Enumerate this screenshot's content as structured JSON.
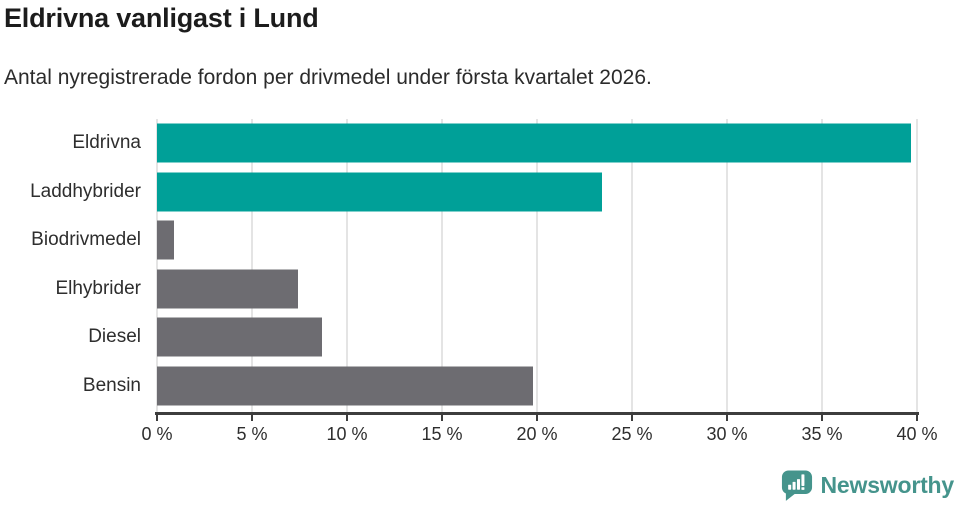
{
  "header": {
    "title": "Eldrivna vanligast i Lund",
    "subtitle": "Antal nyregistrerade fordon per drivmedel under första kvartalet 2026."
  },
  "chart_data": {
    "type": "bar",
    "orientation": "horizontal",
    "title": "Eldrivna vanligast i Lund",
    "subtitle": "Antal nyregistrerade fordon per drivmedel under första kvartalet 2026.",
    "categories": [
      "Eldrivna",
      "Laddhybrider",
      "Biodrivmedel",
      "Elhybrider",
      "Diesel",
      "Bensin"
    ],
    "values": [
      39.7,
      23.4,
      0.9,
      7.4,
      8.7,
      19.8
    ],
    "unit": "%",
    "xlabel": "",
    "ylabel": "",
    "xlim": [
      0,
      40
    ],
    "x_ticks": [
      0,
      5,
      10,
      15,
      20,
      25,
      30,
      35,
      40
    ],
    "x_tick_labels": [
      "0 %",
      "5 %",
      "10 %",
      "15 %",
      "20 %",
      "25 %",
      "30 %",
      "35 %",
      "40 %"
    ],
    "bar_colors": [
      "#00a098",
      "#00a098",
      "#6d6c71",
      "#6d6c71",
      "#6d6c71",
      "#6d6c71"
    ],
    "grid": true,
    "legend": false
  },
  "colors": {
    "accent_teal": "#00a098",
    "bar_gray": "#6d6c71",
    "gridline": "#e4e4e4",
    "axis": "#3d3d3d",
    "text": "#2e2e2e",
    "logo_teal": "#45948c"
  },
  "footer": {
    "brand": "Newsworthy",
    "logo_icon": "newsworthy-speech-bubble-chart-icon"
  }
}
